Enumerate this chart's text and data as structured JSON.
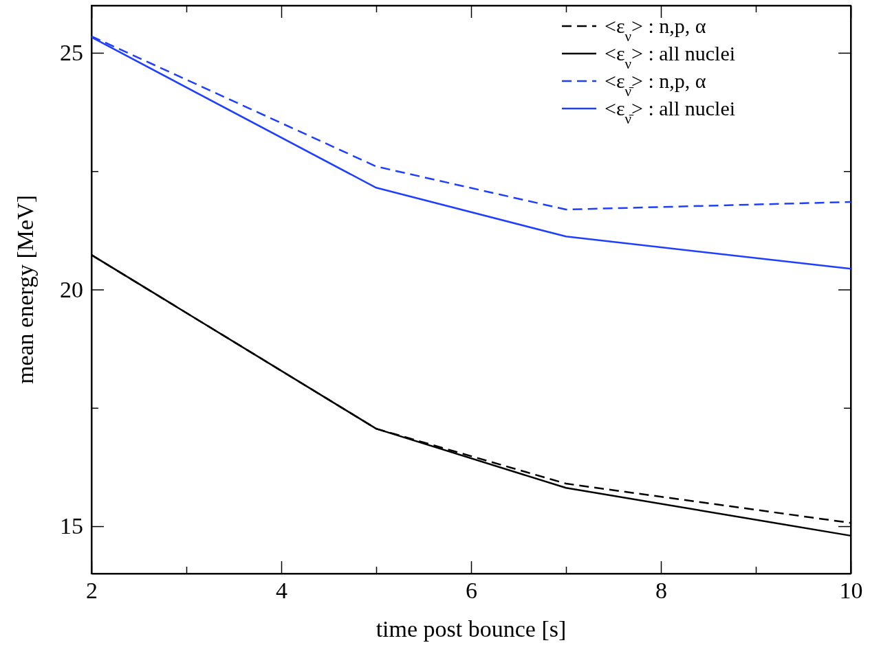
{
  "chart_data": {
    "type": "line",
    "xlabel": "time post bounce [s]",
    "ylabel": "mean energy [MeV]",
    "x": [
      2,
      5,
      7,
      10
    ],
    "xlim": [
      2,
      10
    ],
    "xticks": [
      2,
      {
        "value": 3,
        "label": null
      },
      4,
      {
        "value": 5,
        "label": null
      },
      6,
      {
        "value": 7,
        "label": null
      },
      8,
      {
        "value": 9,
        "label": null
      },
      10
    ],
    "ylim": [
      14,
      26
    ],
    "yticks": [
      15,
      {
        "value": 17.5,
        "label": null
      },
      20,
      {
        "value": 22.5,
        "label": null
      },
      25
    ],
    "grid": false,
    "legend": "top right",
    "marker": "none",
    "series": [
      {
        "name": "<ε$_{ν}$> : n,p, α",
        "color": "#000000",
        "line_style": "dashed",
        "values": [
          20.73,
          17.06,
          15.9,
          15.07
        ]
      },
      {
        "name": "<ε$_{ν}$> : all nuclei",
        "color": "#000000",
        "line_style": "solid",
        "values": [
          20.73,
          17.06,
          15.81,
          14.8
        ]
      },
      {
        "name": "<ε$_{ν̄}$> : n,p, α",
        "color": "#1f3fff",
        "line_style": "dashed",
        "values": [
          25.35,
          22.6,
          21.69,
          21.85
        ]
      },
      {
        "name": "<ε$_{ν̄}$> : all nuclei",
        "color": "#1f3fff",
        "line_style": "solid",
        "values": [
          25.33,
          22.15,
          21.12,
          20.44
        ]
      }
    ]
  }
}
